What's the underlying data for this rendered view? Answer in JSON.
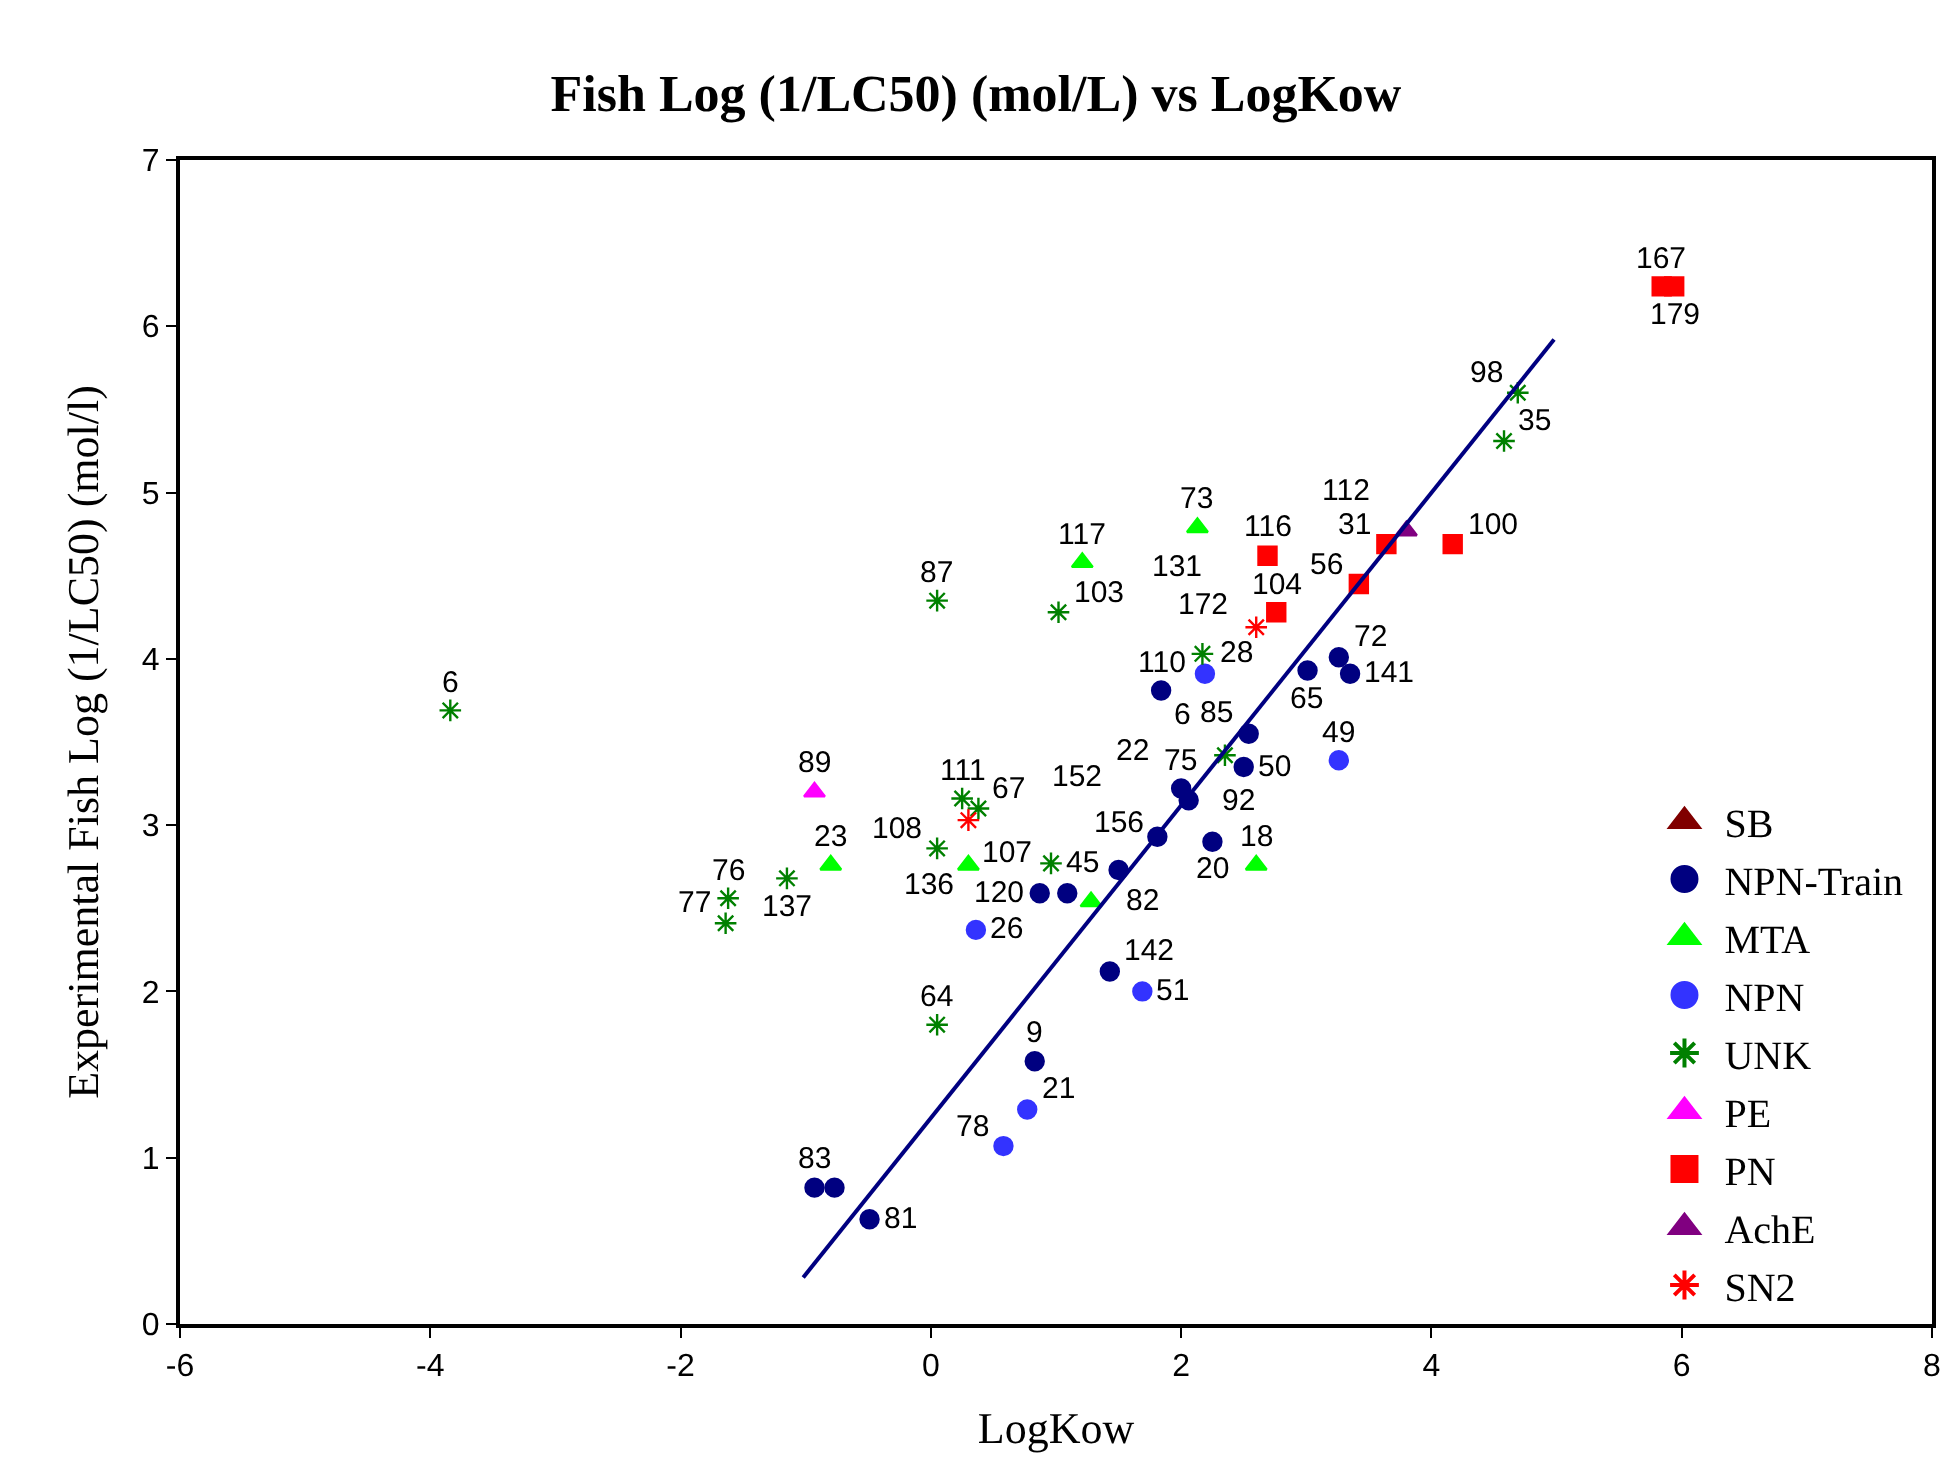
{
  "chart_data": {
    "type": "scatter",
    "title": "Fish Log (1/LC50) (mol/L) vs LogKow",
    "xlabel": "LogKow",
    "ylabel": "Experimental Fish Log (1/LC50) (mol/l)",
    "xlim": [
      -6,
      8
    ],
    "xticks": [
      -6,
      -4,
      -2,
      0,
      2,
      4,
      6,
      8
    ],
    "ylim": [
      0,
      7
    ],
    "yticks": [
      0,
      1,
      2,
      3,
      4,
      5,
      6,
      7
    ],
    "legend": "bottom right",
    "series": [
      {
        "name": "SB",
        "color": "#800000",
        "marker": "triangle"
      },
      {
        "name": "NPN-Train",
        "color": "#000080",
        "marker": "circle",
        "x": [
          1.84,
          3.01,
          3.26,
          3.35,
          2.54,
          2.5,
          null,
          2.06,
          2.0,
          2.25,
          0.87,
          1.09,
          1.5,
          1.81,
          1.43,
          0.83,
          -0.93,
          -0.77,
          -0.49
        ],
        "values": [
          3.81,
          3.93,
          4.01,
          3.91,
          3.55,
          3.35,
          null,
          3.15,
          3.22,
          2.9,
          2.59,
          2.59,
          2.73,
          2.93,
          2.12,
          1.58,
          0.82,
          0.82,
          0.63
        ]
      },
      {
        "name": "MTA",
        "color": "#00ff00",
        "marker": "triangle",
        "x": [
          1.21,
          2.13,
          -0.8,
          0.3,
          1.28,
          2.6
        ],
        "values": [
          4.58,
          4.79,
          2.76,
          2.76,
          2.54,
          2.76
        ]
      },
      {
        "name": "NPN",
        "color": "#3333ff",
        "marker": "circle",
        "x": [
          2.19,
          3.26,
          0.36,
          1.69,
          0.77,
          0.58
        ],
        "values": [
          3.91,
          3.39,
          2.37,
          2.0,
          1.29,
          1.07
        ]
      },
      {
        "name": "UNK",
        "color": "#008000",
        "marker": "cross",
        "x": [
          -3.84,
          0.05,
          1.02,
          -1.62,
          -1.64,
          -1.15,
          0.05,
          0.25,
          0.38,
          0.05,
          2.17,
          4.58,
          4.69,
          0.96,
          2.35
        ],
        "values": [
          3.69,
          4.35,
          4.28,
          2.56,
          2.41,
          2.68,
          2.86,
          3.16,
          3.1,
          1.8,
          4.03,
          5.31,
          5.6,
          2.77,
          3.42
        ]
      },
      {
        "name": "PE",
        "color": "#ff00ff",
        "marker": "triangle",
        "x": [
          -0.93
        ],
        "values": [
          3.2
        ]
      },
      {
        "name": "PN",
        "color": "#ff0000",
        "marker": "square",
        "x": [
          2.69,
          2.76,
          3.42,
          3.64,
          4.17,
          5.84,
          5.94
        ],
        "values": [
          4.62,
          4.28,
          4.45,
          4.69,
          4.69,
          6.24,
          6.24
        ]
      },
      {
        "name": "AchE",
        "color": "#800080",
        "marker": "triangle",
        "x": [
          3.8
        ],
        "values": [
          4.77
        ]
      },
      {
        "name": "SN2",
        "color": "#ff0000",
        "marker": "cross",
        "x": [
          2.6,
          0.3
        ],
        "values": [
          4.19,
          3.03
        ]
      },
      {
        "type": "line",
        "color": "#000080",
        "marker": "none",
        "x": [
          -1.02,
          4.98
        ],
        "values": [
          0.28,
          5.92
        ]
      }
    ],
    "annotations": [
      {
        "text": "110",
        "x": 1.84,
        "y": 3.81
      },
      {
        "text": "65",
        "x": 3.01,
        "y": 3.93
      },
      {
        "text": "72",
        "x": 3.26,
        "y": 4.01
      },
      {
        "text": "141",
        "x": 3.35,
        "y": 3.91
      },
      {
        "text": "85",
        "x": 2.54,
        "y": 3.55
      },
      {
        "text": "50",
        "x": 2.5,
        "y": 3.35
      },
      {
        "text": "22",
        "x": 2.02,
        "y": 3.21
      },
      {
        "text": "92",
        "x": 2.06,
        "y": 3.15
      },
      {
        "text": "75",
        "x": 2.0,
        "y": 3.22
      },
      {
        "text": "20",
        "x": 2.25,
        "y": 2.9
      },
      {
        "text": "120",
        "x": 0.87,
        "y": 2.59
      },
      {
        "text": "107",
        "x": 1.09,
        "y": 2.59
      },
      {
        "text": "156",
        "x": 1.5,
        "y": 2.73
      },
      {
        "text": "152",
        "x": 1.81,
        "y": 2.93
      },
      {
        "text": "142",
        "x": 1.43,
        "y": 2.12
      },
      {
        "text": "9",
        "x": 0.83,
        "y": 1.58
      },
      {
        "text": "83",
        "x": -0.93,
        "y": 0.82
      },
      {
        "text": "81",
        "x": -0.49,
        "y": 0.63
      },
      {
        "text": "117",
        "x": 1.21,
        "y": 4.58
      },
      {
        "text": "73",
        "x": 2.13,
        "y": 4.79
      },
      {
        "text": "23",
        "x": -0.8,
        "y": 2.76
      },
      {
        "text": "136",
        "x": 0.3,
        "y": 2.76
      },
      {
        "text": "82",
        "x": 1.28,
        "y": 2.54
      },
      {
        "text": "18",
        "x": 2.6,
        "y": 2.76
      },
      {
        "text": "28",
        "x": 2.19,
        "y": 3.91
      },
      {
        "text": "49",
        "x": 3.26,
        "y": 3.39
      },
      {
        "text": "26",
        "x": 0.36,
        "y": 2.37
      },
      {
        "text": "51",
        "x": 1.69,
        "y": 2.0
      },
      {
        "text": "21",
        "x": 0.77,
        "y": 1.29
      },
      {
        "text": "78",
        "x": 0.58,
        "y": 1.07
      },
      {
        "text": "6",
        "x": -3.84,
        "y": 3.69
      },
      {
        "text": "87",
        "x": 0.05,
        "y": 4.35
      },
      {
        "text": "103",
        "x": 1.02,
        "y": 4.28
      },
      {
        "text": "76",
        "x": -1.62,
        "y": 2.56
      },
      {
        "text": "77",
        "x": -1.64,
        "y": 2.41
      },
      {
        "text": "137",
        "x": -1.15,
        "y": 2.68
      },
      {
        "text": "108",
        "x": 0.05,
        "y": 2.86
      },
      {
        "text": "111",
        "x": 0.25,
        "y": 3.16
      },
      {
        "text": "67",
        "x": 0.38,
        "y": 3.1
      },
      {
        "text": "64",
        "x": 0.05,
        "y": 1.8
      },
      {
        "text": "172",
        "x": 2.17,
        "y": 4.03
      },
      {
        "text": "35",
        "x": 4.58,
        "y": 5.31
      },
      {
        "text": "98",
        "x": 4.69,
        "y": 5.6
      },
      {
        "text": "45",
        "x": 0.96,
        "y": 2.77
      },
      {
        "text": "6",
        "x": 2.35,
        "y": 3.42
      },
      {
        "text": "89",
        "x": -0.93,
        "y": 3.2
      },
      {
        "text": "116",
        "x": 2.69,
        "y": 4.62
      },
      {
        "text": "104",
        "x": 2.76,
        "y": 4.28
      },
      {
        "text": "56",
        "x": 3.42,
        "y": 4.45
      },
      {
        "text": "31",
        "x": 3.64,
        "y": 4.69
      },
      {
        "text": "100",
        "x": 4.17,
        "y": 4.69
      },
      {
        "text": "167",
        "x": 5.84,
        "y": 6.24
      },
      {
        "text": "179",
        "x": 5.94,
        "y": 6.24
      },
      {
        "text": "112",
        "x": 3.8,
        "y": 4.77
      },
      {
        "text": "131",
        "x": 2.6,
        "y": 4.19
      }
    ]
  }
}
